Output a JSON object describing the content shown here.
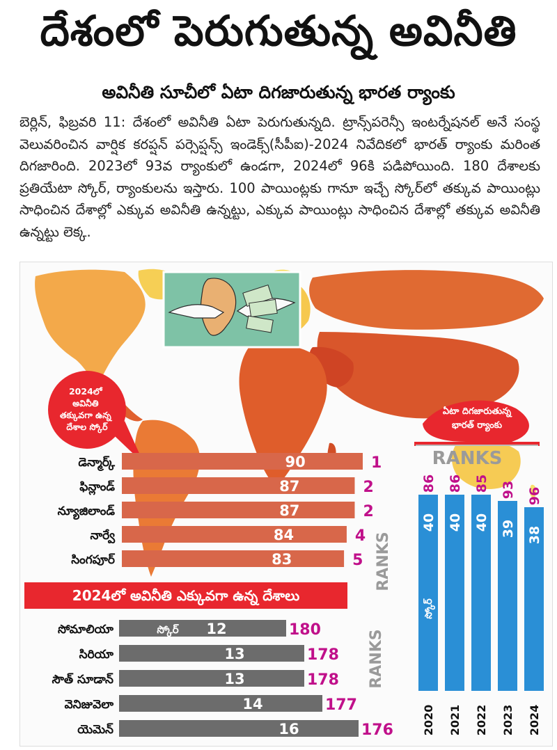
{
  "headline": "దేశంలో పెరుగుతున్న అవినీతి",
  "subheadline": "అవినీతి సూచీలో ఏటా దిగజారుతున్న భారత ర్యాంకు",
  "body_text": "బెర్లిన్, ఫిబ్రవరి 11: దేశంలో అవినీతి ఏటా పెరుగుతున్నది. ట్రాన్స్‌పరెన్సీ ఇంటర్నేషనల్ అనే సంస్థ వెలువరించిన వార్షిక కరప్షన్ పర్సెప్షన్స్ ఇండెక్స్(సీపీఐ)-2024 నివేదికలో భారత్ ర్యాంకు మరింత దిగజారింది. 2023లో 93వ ర్యాంకులో ఉండగా, 2024లో 96కి పడిపోయింది. 180 దేశాలకు ప్రతియేటా స్కోర్, ర్యాంకులను ఇస్తారు. 100 పాయింట్లకు గానూ ఇచ్చే స్కోర్‌లో తక్కువ పాయింట్లు సాధించిన దేశాల్లో ఎక్కువ అవినీతి ఉన్నట్టు, ఎక్కువ పాయింట్లు సాధించిన దేశాల్లో తక్కువ అవినీతి ఉన్నట్టు లెక్క.",
  "colors": {
    "low_corruption_bar": "#d8674a",
    "high_corruption_bar": "#6c6c6c",
    "rank_text": "#c0108a",
    "india_bar": "#2a8fd6",
    "callout": "#e8272e",
    "ranks_label": "#9a9a9a",
    "illustration_bg": "#7ec2a6"
  },
  "icons": [
    "world-map-graphic",
    "bribe-handshake-illustration"
  ],
  "chart_data": [
    {
      "type": "bar",
      "orientation": "horizontal",
      "title": "2024లో అవినీతి తక్కువగా ఉన్న దేశాల స్కోర్",
      "categories": [
        "డెన్మార్క్",
        "ఫిన్లాండ్",
        "న్యూజిలాండ్",
        "నార్వే",
        "సింగపూర్"
      ],
      "values": [
        90,
        87,
        87,
        84,
        83
      ],
      "ranks": [
        1,
        2,
        2,
        4,
        5
      ],
      "rank_axis_label": "RANKS"
    },
    {
      "type": "bar",
      "orientation": "horizontal",
      "title": "2024లో అవినీతి ఎక్కువగా ఉన్న దేశాలు",
      "value_label": "స్కోర్",
      "categories": [
        "సోమాలియా",
        "సిరియా",
        "సౌత్ సూడాన్",
        "వెనిజువెలా",
        "యెమెన్"
      ],
      "values": [
        12,
        13,
        13,
        14,
        16
      ],
      "ranks": [
        180,
        178,
        178,
        177,
        176
      ],
      "rank_axis_label": "RANKS"
    },
    {
      "type": "bar",
      "orientation": "vertical",
      "title": "ఏటా దిగజారుతున్న భారత్ ర్యాంకు",
      "header": "RANKS",
      "series_label": "స్కోర్",
      "categories": [
        "2020",
        "2021",
        "2022",
        "2023",
        "2024"
      ],
      "values": [
        40,
        40,
        40,
        39,
        38
      ],
      "ranks": [
        86,
        86,
        85,
        93,
        96
      ]
    }
  ]
}
